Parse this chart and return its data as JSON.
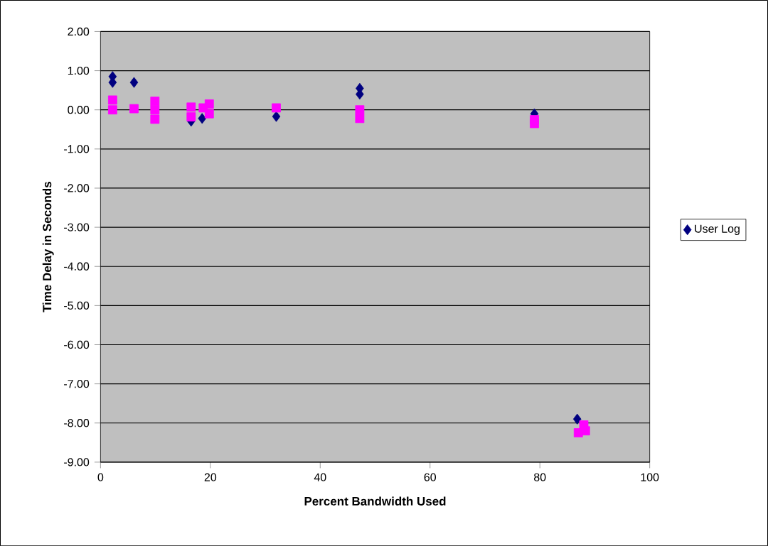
{
  "chart_data": {
    "type": "scatter",
    "xlabel": "Percent Bandwidth Used",
    "ylabel": "Time Delay in Seconds",
    "xlim": [
      0,
      100
    ],
    "xticks": [
      0,
      20,
      40,
      60,
      80,
      100
    ],
    "ylim": [
      -9,
      2
    ],
    "yticks": [
      {
        "value": -9,
        "label": "-9.00"
      },
      {
        "value": -8,
        "label": "-8.00"
      },
      {
        "value": -7,
        "label": "-7.00"
      },
      {
        "value": -6,
        "label": "-6.00"
      },
      {
        "value": -5,
        "label": "-5.00"
      },
      {
        "value": -4,
        "label": "-4.00"
      },
      {
        "value": -3,
        "label": "-3.00"
      },
      {
        "value": -2,
        "label": "-2.00"
      },
      {
        "value": -1,
        "label": "-1.00"
      },
      {
        "value": 0,
        "label": "0.00"
      },
      {
        "value": 1,
        "label": "1.00"
      },
      {
        "value": 2,
        "label": "2.00"
      }
    ],
    "grid": "y",
    "legend": "right",
    "series": [
      {
        "name": "User Log",
        "color": "#000080",
        "marker": "diamond",
        "x": [
          2.2,
          2.2,
          6.1,
          16.5,
          18.5,
          32,
          47.2,
          47.2,
          79,
          86.8
        ],
        "values": [
          0.85,
          0.7,
          0.7,
          -0.29,
          -0.22,
          -0.17,
          0.55,
          0.4,
          -0.1,
          -7.9
        ]
      },
      {
        "color": "#ff00ff",
        "marker": "square",
        "x": [
          2.2,
          2.2,
          6.1,
          9.9,
          9.9,
          9.9,
          16.5,
          16.5,
          18.7,
          19.8,
          19.8,
          32,
          47.2,
          47.2,
          79,
          79,
          87,
          88,
          88.3
        ],
        "values": [
          0.25,
          0.0,
          0.03,
          0.22,
          0.0,
          -0.24,
          0.07,
          -0.18,
          0.05,
          0.15,
          -0.1,
          0.05,
          0.0,
          -0.22,
          -0.25,
          -0.35,
          -8.25,
          -8.05,
          -8.2
        ]
      }
    ]
  }
}
